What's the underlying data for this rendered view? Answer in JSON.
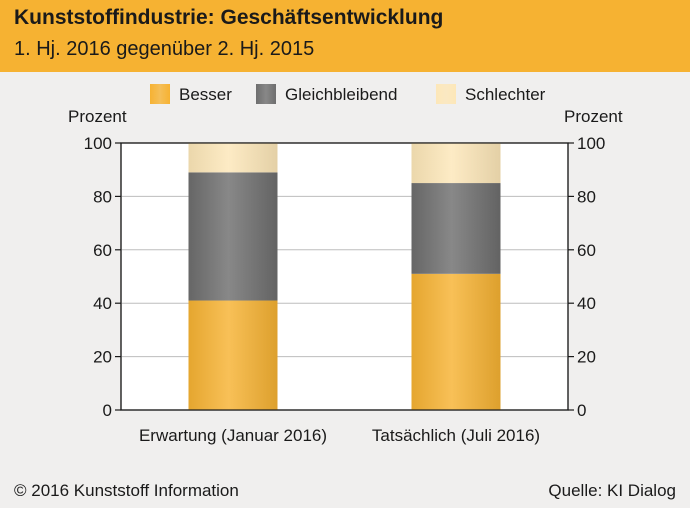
{
  "header": {
    "title": "Kunststoffindustrie: Geschäftsentwicklung",
    "subtitle": "1. Hj. 2016 gegenüber 2. Hj. 2015"
  },
  "footer": {
    "copyright": "© 2016 Kunststoff Information",
    "source": "Quelle: KI Dialog"
  },
  "chart_data": {
    "type": "bar",
    "stacked": true,
    "categories": [
      "Erwartung (Januar 2016)",
      "Tatsächlich (Juli 2016)"
    ],
    "series": [
      {
        "name": "Besser",
        "values": [
          41,
          51
        ],
        "color": "#f6b232"
      },
      {
        "name": "Gleichbleibend",
        "values": [
          48,
          34
        ],
        "color": "#6e6e6e"
      },
      {
        "name": "Schlechter",
        "values": [
          11,
          15
        ],
        "color": "#fde7b8"
      }
    ],
    "ylabel_left": "Prozent",
    "ylabel_right": "Prozent",
    "ylim": [
      0,
      100
    ],
    "yticks": [
      "0",
      "20",
      "40",
      "60",
      "80",
      "100"
    ],
    "legend_position": "top"
  }
}
